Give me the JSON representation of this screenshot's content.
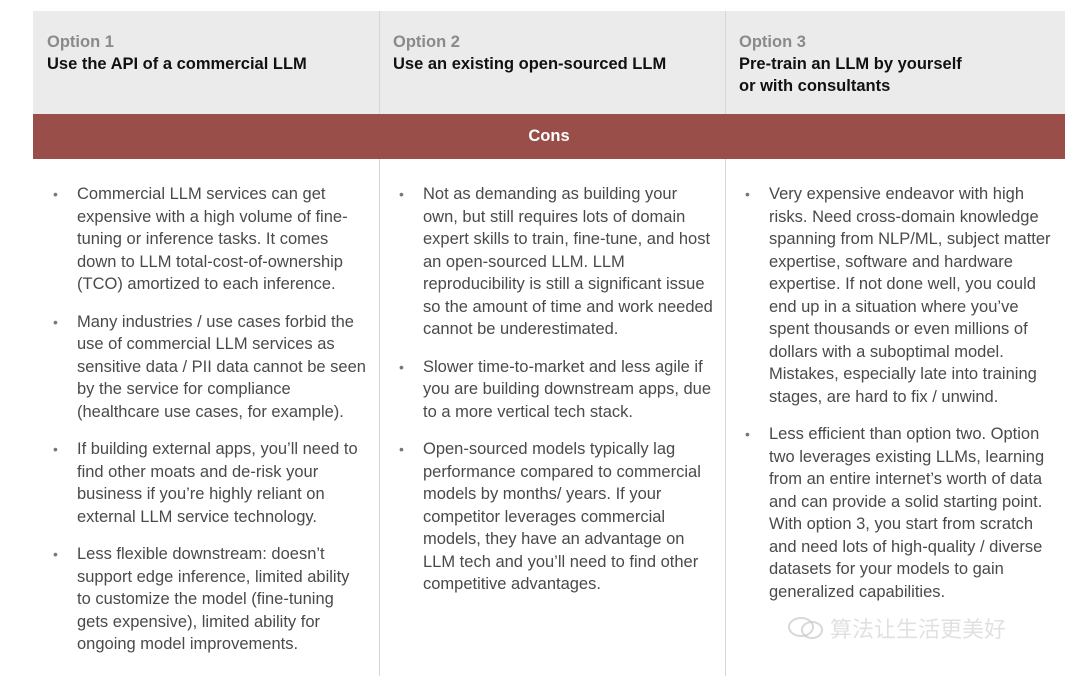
{
  "options": [
    {
      "label": "Option 1",
      "title": "Use the API of a commercial LLM"
    },
    {
      "label": "Option 2",
      "title": "Use an existing open-sourced LLM"
    },
    {
      "label": "Option 3",
      "title": "Pre-train an LLM by yourself\nor with consultants"
    }
  ],
  "section_label": "Cons",
  "cons": [
    [
      "Commercial LLM services can get expensive with a high volume of fine-tuning or inference tasks. It comes down to LLM total-cost-of-ownership (TCO) amortized to each inference.",
      "Many industries / use cases forbid the use of commercial LLM services as sensitive data / PII data cannot be seen by the service for compliance (healthcare use cases, for example).",
      "If building external apps, you’ll need to find other moats and de-risk your business if you’re highly reliant on external LLM service technology.",
      "Less flexible downstream: doesn’t support edge inference, limited ability to customize the model (fine-tuning gets expensive), limited ability for ongoing model improvements."
    ],
    [
      "Not as demanding as building your own, but still requires lots of domain expert skills to train, fine-tune, and host an open-sourced LLM. LLM reproducibility is still a significant issue so the amount of time and work needed cannot be underestimated.",
      "Slower time-to-market and less agile if you are building downstream apps, due to a more vertical tech stack.",
      "Open-sourced models typically lag performance compared to commercial models by months/ years. If your competitor leverages commercial models, they have an advantage on LLM tech and you’ll need to find other competitive advantages."
    ],
    [
      "Very expensive endeavor with high risks. Need cross-domain knowledge spanning from NLP/ML, subject matter expertise, software and hardware expertise. If not done well, you could end up in a situation where you’ve spent thousands or even millions of dollars with a suboptimal model. Mistakes, especially late into training stages, are hard to fix / unwind.",
      "Less efficient than option two. Option two leverages existing LLMs, learning from an entire internet’s worth of data and can provide a solid starting point. With option 3, you start from scratch and need lots of high-quality / diverse datasets for your models to gain generalized capabilities."
    ]
  ],
  "watermark": "算法让生活更美好",
  "colors": {
    "header_bg": "#ebebeb",
    "cons_band": "#9a4e4a",
    "divider": "#d6d6d6"
  }
}
